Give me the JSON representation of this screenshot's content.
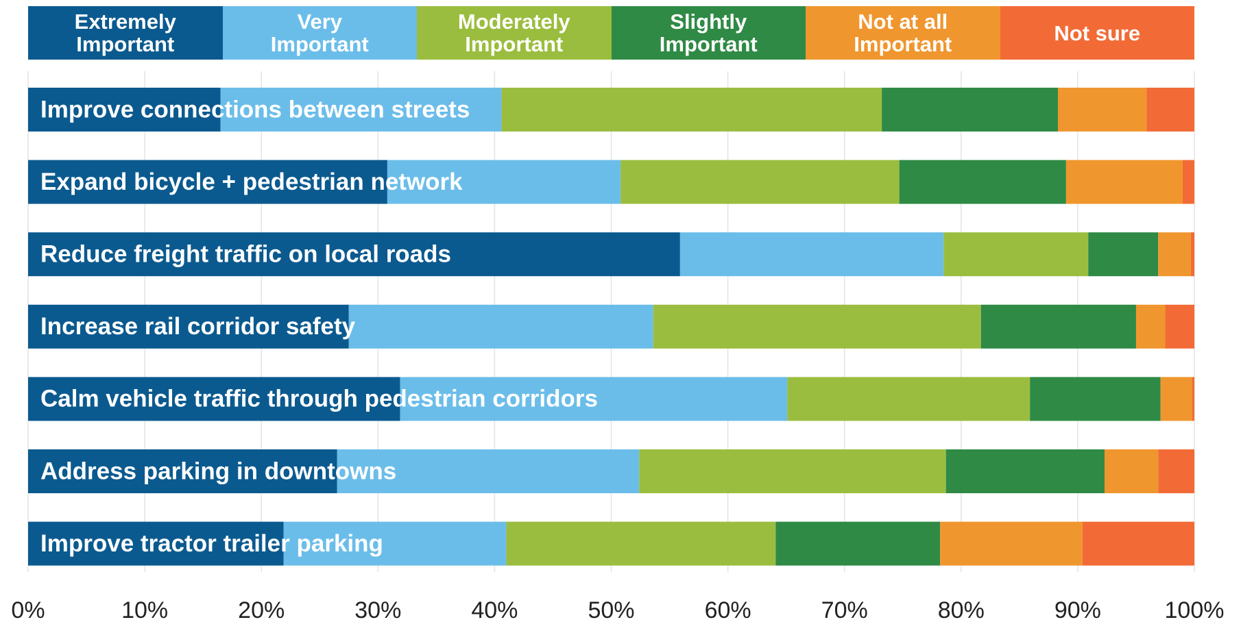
{
  "chart_data": {
    "type": "stacked_bar_horizontal",
    "categories": [
      "Improve connections between streets",
      "Expand bicycle + pedestrian network",
      "Reduce freight traffic on local roads",
      "Increase rail corridor safety",
      "Calm vehicle traffic through pedestrian corridors",
      "Address parking in downtowns",
      "Improve tractor trailer parking"
    ],
    "series": [
      {
        "name": "Extremely Important",
        "color": "#0b5a8f",
        "values": [
          16.5,
          30.8,
          55.9,
          27.5,
          31.9,
          26.5,
          21.9
        ]
      },
      {
        "name": "Very Important",
        "color": "#6bbde9",
        "values": [
          24.1,
          20.0,
          22.6,
          26.1,
          33.2,
          25.9,
          19.1
        ]
      },
      {
        "name": "Moderately Important",
        "color": "#9bbd3f",
        "values": [
          32.6,
          23.9,
          12.4,
          28.1,
          20.8,
          26.3,
          23.1
        ]
      },
      {
        "name": "Slightly Important",
        "color": "#2f8a45",
        "values": [
          15.1,
          14.3,
          6.0,
          13.3,
          11.2,
          13.6,
          14.1
        ]
      },
      {
        "name": "Not at all Important",
        "color": "#f0962e",
        "values": [
          7.6,
          10.0,
          2.8,
          2.5,
          2.7,
          4.6,
          12.2
        ]
      },
      {
        "name": "Not sure",
        "color": "#f26b36",
        "values": [
          4.1,
          1.0,
          0.3,
          2.5,
          0.2,
          3.1,
          9.6
        ]
      }
    ],
    "xlim": [
      0,
      100
    ],
    "xticks": [
      {
        "value": 0,
        "label": "0%"
      },
      {
        "value": 10,
        "label": "10%"
      },
      {
        "value": 20,
        "label": "20%"
      },
      {
        "value": 30,
        "label": "30%"
      },
      {
        "value": 40,
        "label": "40%"
      },
      {
        "value": 50,
        "label": "50%"
      },
      {
        "value": 60,
        "label": "60%"
      },
      {
        "value": 70,
        "label": "70%"
      },
      {
        "value": 80,
        "label": "80%"
      },
      {
        "value": 90,
        "label": "90%"
      },
      {
        "value": 100,
        "label": "100%"
      }
    ],
    "grid": true,
    "legend": "top"
  }
}
